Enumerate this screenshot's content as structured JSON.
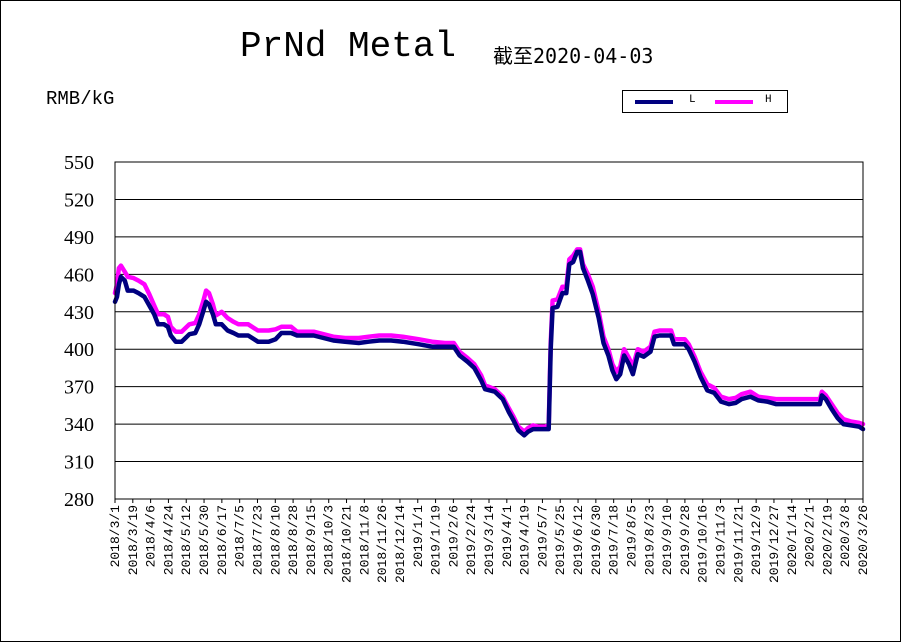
{
  "chart_data": {
    "type": "line",
    "title": "PrNd Metal",
    "subtitle": "截至2020-04-03",
    "ylabel": "RMB/kG",
    "ylim": [
      280,
      550
    ],
    "yticks": [
      280,
      310,
      340,
      370,
      400,
      430,
      460,
      490,
      520,
      550
    ],
    "xlim": [
      "2018-03-01",
      "2020-04-03"
    ],
    "xtick_labels": [
      "2018/3/1",
      "2018/3/19",
      "2018/4/6",
      "2018/4/24",
      "2018/5/12",
      "2018/5/30",
      "2018/6/17",
      "2018/7/5",
      "2018/7/23",
      "2018/8/10",
      "2018/8/28",
      "2018/9/15",
      "2018/10/3",
      "2018/10/21",
      "2018/11/8",
      "2018/11/26",
      "2018/12/14",
      "2019/1/1",
      "2019/1/19",
      "2019/2/6",
      "2019/2/24",
      "2019/3/14",
      "2019/4/1",
      "2019/4/19",
      "2019/5/7",
      "2019/5/25",
      "2019/6/12",
      "2019/6/30",
      "2019/7/18",
      "2019/8/5",
      "2019/8/23",
      "2019/9/10",
      "2019/9/28",
      "2019/10/16",
      "2019/11/3",
      "2019/11/21",
      "2019/12/9",
      "2019/12/27",
      "2020/1/14",
      "2020/2/1",
      "2020/2/19",
      "2020/3/8",
      "2020/3/26"
    ],
    "grid": true,
    "legend_position": "top-right",
    "series": [
      {
        "name": "L",
        "color": "#000080",
        "points": [
          [
            "2018-03-01",
            438
          ],
          [
            "2018-03-03",
            442
          ],
          [
            "2018-03-05",
            452
          ],
          [
            "2018-03-07",
            458
          ],
          [
            "2018-03-11",
            455
          ],
          [
            "2018-03-14",
            447
          ],
          [
            "2018-03-20",
            447
          ],
          [
            "2018-03-25",
            445
          ],
          [
            "2018-03-31",
            442
          ],
          [
            "2018-04-05",
            435
          ],
          [
            "2018-04-10",
            428
          ],
          [
            "2018-04-14",
            420
          ],
          [
            "2018-04-20",
            420
          ],
          [
            "2018-04-24",
            418
          ],
          [
            "2018-04-27",
            411
          ],
          [
            "2018-05-02",
            406
          ],
          [
            "2018-05-08",
            406
          ],
          [
            "2018-05-12",
            409
          ],
          [
            "2018-05-16",
            412
          ],
          [
            "2018-05-22",
            413
          ],
          [
            "2018-05-26",
            420
          ],
          [
            "2018-05-30",
            430
          ],
          [
            "2018-06-02",
            438
          ],
          [
            "2018-06-05",
            436
          ],
          [
            "2018-06-09",
            428
          ],
          [
            "2018-06-12",
            420
          ],
          [
            "2018-06-18",
            420
          ],
          [
            "2018-06-24",
            415
          ],
          [
            "2018-06-30",
            413
          ],
          [
            "2018-07-05",
            411
          ],
          [
            "2018-07-15",
            411
          ],
          [
            "2018-07-25",
            406
          ],
          [
            "2018-08-05",
            406
          ],
          [
            "2018-08-12",
            408
          ],
          [
            "2018-08-18",
            413
          ],
          [
            "2018-08-28",
            413
          ],
          [
            "2018-09-03",
            411
          ],
          [
            "2018-09-20",
            411
          ],
          [
            "2018-09-30",
            409
          ],
          [
            "2018-10-10",
            407
          ],
          [
            "2018-10-22",
            406
          ],
          [
            "2018-11-05",
            405
          ],
          [
            "2018-11-15",
            406
          ],
          [
            "2018-11-26",
            407
          ],
          [
            "2018-12-08",
            407
          ],
          [
            "2018-12-20",
            406
          ],
          [
            "2019-01-05",
            404
          ],
          [
            "2019-01-19",
            402
          ],
          [
            "2019-02-01",
            402
          ],
          [
            "2019-02-10",
            402
          ],
          [
            "2019-02-16",
            395
          ],
          [
            "2019-02-24",
            390
          ],
          [
            "2019-03-03",
            385
          ],
          [
            "2019-03-10",
            375
          ],
          [
            "2019-03-14",
            368
          ],
          [
            "2019-03-24",
            366
          ],
          [
            "2019-04-01",
            360
          ],
          [
            "2019-04-07",
            350
          ],
          [
            "2019-04-12",
            343
          ],
          [
            "2019-04-17",
            335
          ],
          [
            "2019-04-23",
            331
          ],
          [
            "2019-04-27",
            334
          ],
          [
            "2019-05-02",
            336
          ],
          [
            "2019-05-07",
            336
          ],
          [
            "2019-05-14",
            336
          ],
          [
            "2019-05-18",
            336
          ],
          [
            "2019-05-20",
            400
          ],
          [
            "2019-05-22",
            433
          ],
          [
            "2019-05-27",
            434
          ],
          [
            "2019-06-01",
            445
          ],
          [
            "2019-06-05",
            445
          ],
          [
            "2019-06-08",
            468
          ],
          [
            "2019-06-12",
            470
          ],
          [
            "2019-06-16",
            478
          ],
          [
            "2019-06-19",
            478
          ],
          [
            "2019-06-22",
            465
          ],
          [
            "2019-06-27",
            455
          ],
          [
            "2019-07-02",
            444
          ],
          [
            "2019-07-08",
            425
          ],
          [
            "2019-07-13",
            405
          ],
          [
            "2019-07-18",
            395
          ],
          [
            "2019-07-22",
            383
          ],
          [
            "2019-07-26",
            376
          ],
          [
            "2019-07-30",
            380
          ],
          [
            "2019-08-03",
            395
          ],
          [
            "2019-08-08",
            388
          ],
          [
            "2019-08-12",
            380
          ],
          [
            "2019-08-17",
            396
          ],
          [
            "2019-08-23",
            394
          ],
          [
            "2019-08-30",
            398
          ],
          [
            "2019-09-03",
            410
          ],
          [
            "2019-09-08",
            411
          ],
          [
            "2019-09-20",
            411
          ],
          [
            "2019-09-23",
            404
          ],
          [
            "2019-10-04",
            404
          ],
          [
            "2019-10-08",
            400
          ],
          [
            "2019-10-14",
            390
          ],
          [
            "2019-10-20",
            378
          ],
          [
            "2019-10-27",
            367
          ],
          [
            "2019-11-03",
            365
          ],
          [
            "2019-11-10",
            358
          ],
          [
            "2019-11-18",
            356
          ],
          [
            "2019-11-25",
            357
          ],
          [
            "2019-12-01",
            360
          ],
          [
            "2019-12-10",
            362
          ],
          [
            "2019-12-18",
            359
          ],
          [
            "2019-12-27",
            358
          ],
          [
            "2020-01-05",
            356
          ],
          [
            "2020-01-20",
            356
          ],
          [
            "2020-02-01",
            356
          ],
          [
            "2020-02-14",
            356
          ],
          [
            "2020-02-19",
            356
          ],
          [
            "2020-02-21",
            363
          ],
          [
            "2020-02-25",
            360
          ],
          [
            "2020-03-02",
            352
          ],
          [
            "2020-03-08",
            345
          ],
          [
            "2020-03-14",
            340
          ],
          [
            "2020-03-22",
            339
          ],
          [
            "2020-03-30",
            338
          ],
          [
            "2020-04-03",
            336
          ]
        ]
      },
      {
        "name": "H",
        "color": "#ff00ff",
        "points": [
          [
            "2018-03-01",
            445
          ],
          [
            "2018-03-03",
            452
          ],
          [
            "2018-03-05",
            465
          ],
          [
            "2018-03-07",
            467
          ],
          [
            "2018-03-11",
            462
          ],
          [
            "2018-03-14",
            458
          ],
          [
            "2018-03-20",
            457
          ],
          [
            "2018-03-25",
            455
          ],
          [
            "2018-03-31",
            452
          ],
          [
            "2018-04-05",
            444
          ],
          [
            "2018-04-10",
            435
          ],
          [
            "2018-04-14",
            428
          ],
          [
            "2018-04-20",
            428
          ],
          [
            "2018-04-24",
            426
          ],
          [
            "2018-04-27",
            418
          ],
          [
            "2018-05-02",
            414
          ],
          [
            "2018-05-08",
            414
          ],
          [
            "2018-05-12",
            417
          ],
          [
            "2018-05-16",
            420
          ],
          [
            "2018-05-22",
            421
          ],
          [
            "2018-05-26",
            428
          ],
          [
            "2018-05-30",
            438
          ],
          [
            "2018-06-02",
            447
          ],
          [
            "2018-06-05",
            445
          ],
          [
            "2018-06-09",
            436
          ],
          [
            "2018-06-12",
            427
          ],
          [
            "2018-06-18",
            430
          ],
          [
            "2018-06-24",
            425
          ],
          [
            "2018-06-30",
            422
          ],
          [
            "2018-07-05",
            420
          ],
          [
            "2018-07-15",
            420
          ],
          [
            "2018-07-25",
            415
          ],
          [
            "2018-08-05",
            415
          ],
          [
            "2018-08-12",
            416
          ],
          [
            "2018-08-18",
            418
          ],
          [
            "2018-08-28",
            418
          ],
          [
            "2018-09-03",
            414
          ],
          [
            "2018-09-20",
            414
          ],
          [
            "2018-09-30",
            412
          ],
          [
            "2018-10-10",
            410
          ],
          [
            "2018-10-22",
            409
          ],
          [
            "2018-11-05",
            409
          ],
          [
            "2018-11-15",
            410
          ],
          [
            "2018-11-26",
            411
          ],
          [
            "2018-12-08",
            411
          ],
          [
            "2018-12-20",
            410
          ],
          [
            "2019-01-05",
            408
          ],
          [
            "2019-01-19",
            406
          ],
          [
            "2019-02-01",
            405
          ],
          [
            "2019-02-10",
            405
          ],
          [
            "2019-02-16",
            398
          ],
          [
            "2019-02-24",
            393
          ],
          [
            "2019-03-03",
            388
          ],
          [
            "2019-03-10",
            379
          ],
          [
            "2019-03-14",
            371
          ],
          [
            "2019-03-24",
            368
          ],
          [
            "2019-04-01",
            362
          ],
          [
            "2019-04-07",
            353
          ],
          [
            "2019-04-12",
            346
          ],
          [
            "2019-04-17",
            338
          ],
          [
            "2019-04-23",
            334
          ],
          [
            "2019-04-27",
            337
          ],
          [
            "2019-05-02",
            339
          ],
          [
            "2019-05-07",
            338
          ],
          [
            "2019-05-14",
            338
          ],
          [
            "2019-05-18",
            339
          ],
          [
            "2019-05-20",
            405
          ],
          [
            "2019-05-22",
            439
          ],
          [
            "2019-05-27",
            440
          ],
          [
            "2019-06-01",
            450
          ],
          [
            "2019-06-05",
            450
          ],
          [
            "2019-06-08",
            472
          ],
          [
            "2019-06-12",
            475
          ],
          [
            "2019-06-16",
            480
          ],
          [
            "2019-06-19",
            480
          ],
          [
            "2019-06-22",
            468
          ],
          [
            "2019-06-27",
            460
          ],
          [
            "2019-07-02",
            450
          ],
          [
            "2019-07-08",
            430
          ],
          [
            "2019-07-13",
            410
          ],
          [
            "2019-07-18",
            400
          ],
          [
            "2019-07-22",
            388
          ],
          [
            "2019-07-26",
            382
          ],
          [
            "2019-07-30",
            386
          ],
          [
            "2019-08-03",
            400
          ],
          [
            "2019-08-08",
            393
          ],
          [
            "2019-08-12",
            386
          ],
          [
            "2019-08-17",
            400
          ],
          [
            "2019-08-23",
            398
          ],
          [
            "2019-08-30",
            402
          ],
          [
            "2019-09-03",
            414
          ],
          [
            "2019-09-08",
            415
          ],
          [
            "2019-09-20",
            415
          ],
          [
            "2019-09-23",
            408
          ],
          [
            "2019-10-04",
            408
          ],
          [
            "2019-10-08",
            404
          ],
          [
            "2019-10-14",
            394
          ],
          [
            "2019-10-20",
            382
          ],
          [
            "2019-10-27",
            372
          ],
          [
            "2019-11-03",
            369
          ],
          [
            "2019-11-10",
            362
          ],
          [
            "2019-11-18",
            360
          ],
          [
            "2019-11-25",
            361
          ],
          [
            "2019-12-01",
            364
          ],
          [
            "2019-12-10",
            366
          ],
          [
            "2019-12-18",
            362
          ],
          [
            "2019-12-27",
            361
          ],
          [
            "2020-01-05",
            360
          ],
          [
            "2020-01-20",
            360
          ],
          [
            "2020-02-01",
            360
          ],
          [
            "2020-02-14",
            360
          ],
          [
            "2020-02-19",
            360
          ],
          [
            "2020-02-21",
            366
          ],
          [
            "2020-02-25",
            363
          ],
          [
            "2020-03-02",
            356
          ],
          [
            "2020-03-08",
            349
          ],
          [
            "2020-03-14",
            344
          ],
          [
            "2020-03-22",
            342
          ],
          [
            "2020-03-30",
            341
          ],
          [
            "2020-04-03",
            340
          ]
        ]
      }
    ]
  }
}
